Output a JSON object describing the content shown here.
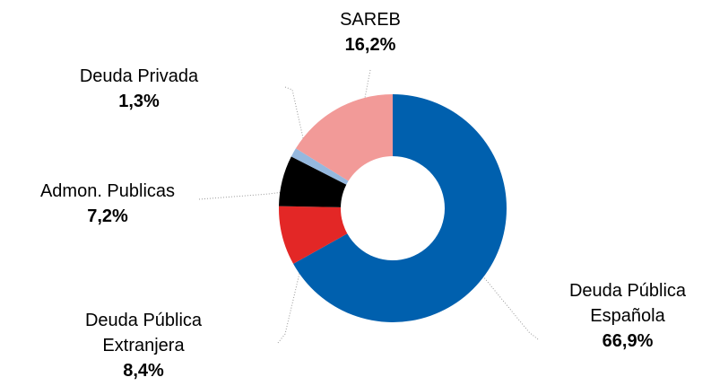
{
  "chart_data": {
    "type": "donut",
    "categories": [
      "Deuda Pública Española",
      "Deuda Pública Extranjera",
      "Admon. Publicas",
      "Deuda Privada",
      "SAREB"
    ],
    "values": [
      66.9,
      8.4,
      7.2,
      1.3,
      16.2
    ],
    "value_labels": [
      "66,9%",
      "8,4%",
      "7,2%",
      "1,3%",
      "16,2%"
    ],
    "colors": [
      "#0060ae",
      "#e32726",
      "#000000",
      "#95b8de",
      "#f29a98"
    ]
  }
}
